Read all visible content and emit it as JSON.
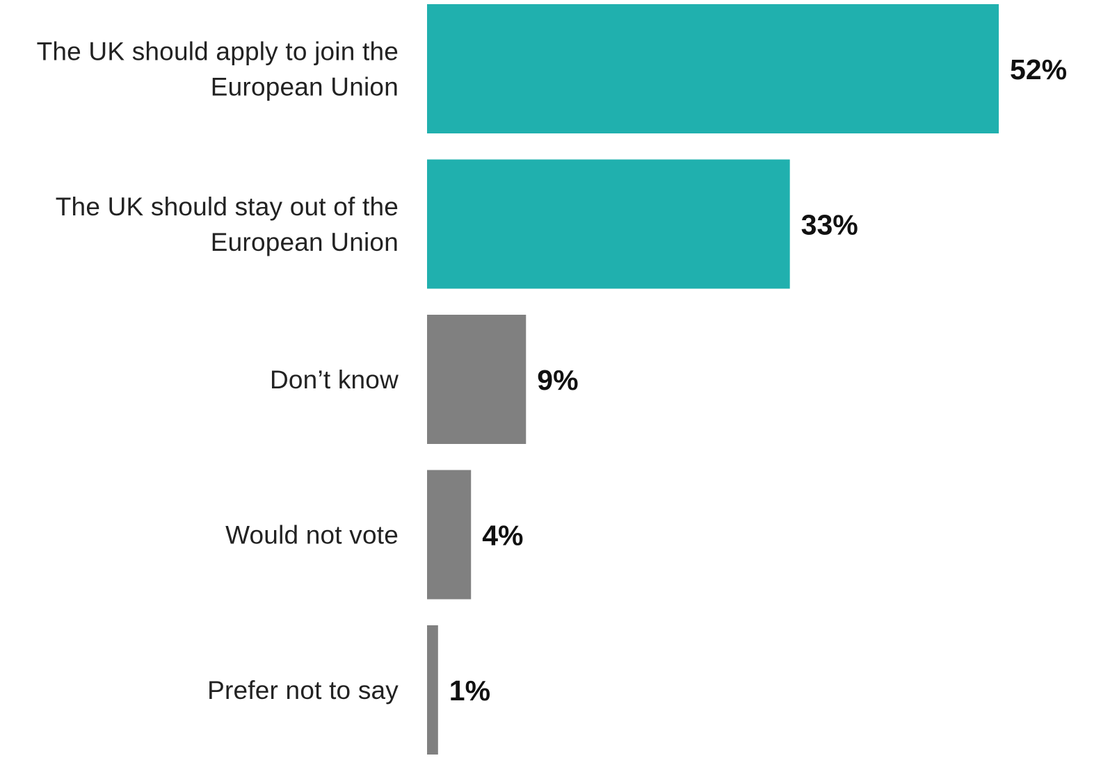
{
  "chart_data": {
    "type": "bar",
    "orientation": "horizontal",
    "categories": [
      [
        "The UK should apply to join the",
        "European Union"
      ],
      [
        "The UK should stay out of the",
        "European Union"
      ],
      [
        "Don’t know"
      ],
      [
        "Would not vote"
      ],
      [
        "Prefer not to say"
      ]
    ],
    "values": [
      52,
      33,
      9,
      4,
      1
    ],
    "value_labels": [
      "52%",
      "33%",
      "9%",
      "4%",
      "1%"
    ],
    "bar_colors": [
      "#20b0ae",
      "#20b0ae",
      "#808080",
      "#808080",
      "#808080"
    ],
    "xlim": [
      0,
      52
    ],
    "grid": false,
    "legend": "none",
    "title": "",
    "xlabel": "",
    "ylabel": ""
  }
}
